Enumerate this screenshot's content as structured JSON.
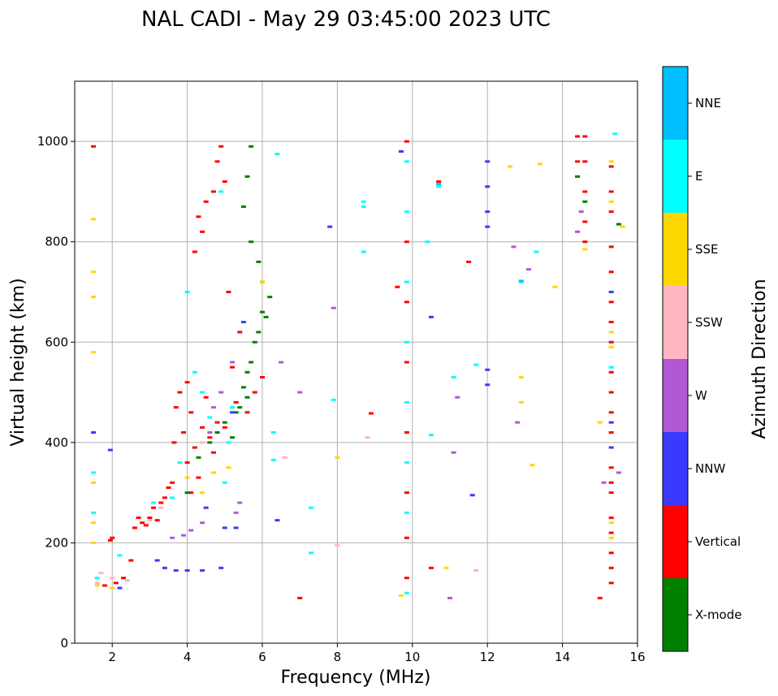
{
  "chart_data": {
    "type": "scatter",
    "title": "NAL CADI - May 29 03:45:00 2023 UTC",
    "xlabel": "Frequency (MHz)",
    "ylabel": "Virtual height (km)",
    "xlim": [
      1,
      16
    ],
    "ylim": [
      0,
      1120
    ],
    "xticks": [
      2,
      4,
      6,
      8,
      10,
      12,
      14,
      16
    ],
    "yticks": [
      0,
      200,
      400,
      600,
      800,
      1000
    ],
    "grid": true,
    "colorbar": {
      "label": "Azimuth Direction",
      "categories": [
        {
          "name": "X-mode",
          "color": "#008000"
        },
        {
          "name": "Vertical",
          "color": "#ff0000"
        },
        {
          "name": "NNW",
          "color": "#3a3aff"
        },
        {
          "name": "W",
          "color": "#b158d6"
        },
        {
          "name": "SSW",
          "color": "#ffb6c1"
        },
        {
          "name": "SSE",
          "color": "#ffd700"
        },
        {
          "name": "E",
          "color": "#00ffff"
        },
        {
          "name": "NNE",
          "color": "#00bfff"
        }
      ]
    },
    "series": [
      {
        "name": "Vertical",
        "points": [
          [
            1.5,
            990
          ],
          [
            1.8,
            115
          ],
          [
            1.95,
            205
          ],
          [
            2.0,
            210
          ],
          [
            2.1,
            120
          ],
          [
            2.3,
            130
          ],
          [
            2.5,
            165
          ],
          [
            2.6,
            230
          ],
          [
            2.7,
            250
          ],
          [
            2.8,
            240
          ],
          [
            2.9,
            235
          ],
          [
            3.0,
            250
          ],
          [
            3.1,
            270
          ],
          [
            3.2,
            245
          ],
          [
            3.3,
            280
          ],
          [
            3.4,
            290
          ],
          [
            3.5,
            310
          ],
          [
            3.6,
            320
          ],
          [
            3.65,
            400
          ],
          [
            3.7,
            470
          ],
          [
            3.8,
            500
          ],
          [
            3.9,
            420
          ],
          [
            4.0,
            360
          ],
          [
            4.0,
            520
          ],
          [
            4.1,
            300
          ],
          [
            4.1,
            460
          ],
          [
            4.2,
            390
          ],
          [
            4.2,
            780
          ],
          [
            4.3,
            330
          ],
          [
            4.3,
            850
          ],
          [
            4.4,
            430
          ],
          [
            4.4,
            820
          ],
          [
            4.5,
            490
          ],
          [
            4.5,
            880
          ],
          [
            4.6,
            410
          ],
          [
            4.7,
            380
          ],
          [
            4.7,
            900
          ],
          [
            4.8,
            440
          ],
          [
            4.8,
            960
          ],
          [
            4.9,
            990
          ],
          [
            5.0,
            430
          ],
          [
            5.0,
            920
          ],
          [
            5.1,
            700
          ],
          [
            5.2,
            550
          ],
          [
            5.3,
            480
          ],
          [
            5.4,
            620
          ],
          [
            5.6,
            460
          ],
          [
            5.8,
            500
          ],
          [
            6.0,
            530
          ],
          [
            7.0,
            90
          ],
          [
            8.9,
            458
          ],
          [
            9.6,
            710
          ],
          [
            9.85,
            130
          ],
          [
            9.85,
            210
          ],
          [
            9.85,
            300
          ],
          [
            9.85,
            420
          ],
          [
            9.85,
            560
          ],
          [
            9.85,
            680
          ],
          [
            9.85,
            800
          ],
          [
            9.85,
            1000
          ],
          [
            10.5,
            150
          ],
          [
            10.7,
            920
          ],
          [
            11.5,
            760
          ],
          [
            14.4,
            1010
          ],
          [
            14.4,
            960
          ],
          [
            14.6,
            1010
          ],
          [
            14.6,
            960
          ],
          [
            14.6,
            900
          ],
          [
            14.6,
            840
          ],
          [
            14.6,
            800
          ],
          [
            15.0,
            90
          ],
          [
            15.3,
            120
          ],
          [
            15.3,
            150
          ],
          [
            15.3,
            180
          ],
          [
            15.3,
            220
          ],
          [
            15.3,
            250
          ],
          [
            15.3,
            300
          ],
          [
            15.3,
            320
          ],
          [
            15.3,
            350
          ],
          [
            15.3,
            420
          ],
          [
            15.3,
            460
          ],
          [
            15.3,
            500
          ],
          [
            15.3,
            540
          ],
          [
            15.3,
            600
          ],
          [
            15.3,
            640
          ],
          [
            15.3,
            680
          ],
          [
            15.3,
            740
          ],
          [
            15.3,
            790
          ],
          [
            15.3,
            860
          ],
          [
            15.3,
            900
          ],
          [
            15.3,
            950
          ]
        ]
      },
      {
        "name": "X-mode",
        "points": [
          [
            4.0,
            300
          ],
          [
            4.3,
            370
          ],
          [
            4.6,
            400
          ],
          [
            4.8,
            420
          ],
          [
            5.0,
            440
          ],
          [
            5.2,
            410
          ],
          [
            5.3,
            460
          ],
          [
            5.4,
            470
          ],
          [
            5.5,
            510
          ],
          [
            5.6,
            490
          ],
          [
            5.6,
            540
          ],
          [
            5.7,
            560
          ],
          [
            5.8,
            600
          ],
          [
            5.9,
            620
          ],
          [
            6.0,
            660
          ],
          [
            6.1,
            650
          ],
          [
            6.2,
            690
          ],
          [
            5.9,
            760
          ],
          [
            6.0,
            720
          ],
          [
            5.7,
            800
          ],
          [
            5.5,
            870
          ],
          [
            5.6,
            930
          ],
          [
            5.7,
            990
          ],
          [
            14.4,
            930
          ],
          [
            14.6,
            880
          ],
          [
            15.5,
            835
          ]
        ]
      },
      {
        "name": "NNW",
        "points": [
          [
            1.5,
            420
          ],
          [
            1.95,
            385
          ],
          [
            2.2,
            110
          ],
          [
            3.2,
            165
          ],
          [
            3.4,
            150
          ],
          [
            3.7,
            145
          ],
          [
            4.0,
            145
          ],
          [
            4.4,
            145
          ],
          [
            4.9,
            150
          ],
          [
            4.5,
            270
          ],
          [
            5.0,
            230
          ],
          [
            5.3,
            230
          ],
          [
            5.5,
            640
          ],
          [
            5.2,
            460
          ],
          [
            6.4,
            245
          ],
          [
            7.8,
            830
          ],
          [
            9.7,
            980
          ],
          [
            10.5,
            650
          ],
          [
            11.6,
            295
          ],
          [
            12.0,
            515
          ],
          [
            12.0,
            545
          ],
          [
            12.0,
            830
          ],
          [
            12.0,
            860
          ],
          [
            12.0,
            910
          ],
          [
            12.0,
            960
          ],
          [
            15.3,
            440
          ],
          [
            15.3,
            390
          ],
          [
            15.3,
            700
          ]
        ]
      },
      {
        "name": "W",
        "points": [
          [
            3.6,
            210
          ],
          [
            3.9,
            215
          ],
          [
            4.1,
            225
          ],
          [
            4.4,
            240
          ],
          [
            5.3,
            260
          ],
          [
            5.4,
            280
          ],
          [
            5.2,
            560
          ],
          [
            4.9,
            500
          ],
          [
            4.7,
            470
          ],
          [
            4.6,
            420
          ],
          [
            6.5,
            560
          ],
          [
            7.0,
            500
          ],
          [
            7.9,
            668
          ],
          [
            11.0,
            90
          ],
          [
            11.1,
            380
          ],
          [
            11.2,
            490
          ],
          [
            12.7,
            790
          ],
          [
            12.8,
            440
          ],
          [
            13.1,
            745
          ],
          [
            14.4,
            820
          ],
          [
            14.5,
            860
          ],
          [
            15.5,
            340
          ],
          [
            15.1,
            320
          ]
        ]
      },
      {
        "name": "SSW",
        "points": [
          [
            1.6,
            120
          ],
          [
            1.7,
            140
          ],
          [
            2.0,
            130
          ],
          [
            2.4,
            125
          ],
          [
            3.0,
            245
          ],
          [
            3.3,
            270
          ],
          [
            4.4,
            400
          ],
          [
            6.6,
            370
          ],
          [
            8.0,
            195
          ],
          [
            8.8,
            410
          ],
          [
            11.7,
            145
          ]
        ]
      },
      {
        "name": "SSE",
        "points": [
          [
            1.5,
            845
          ],
          [
            1.5,
            740
          ],
          [
            1.5,
            690
          ],
          [
            1.5,
            580
          ],
          [
            1.5,
            320
          ],
          [
            1.5,
            240
          ],
          [
            1.5,
            200
          ],
          [
            1.6,
            115
          ],
          [
            2.0,
            110
          ],
          [
            4.0,
            330
          ],
          [
            4.4,
            300
          ],
          [
            4.7,
            340
          ],
          [
            5.1,
            350
          ],
          [
            6.0,
            720
          ],
          [
            8.0,
            370
          ],
          [
            9.7,
            95
          ],
          [
            10.9,
            150
          ],
          [
            12.6,
            950
          ],
          [
            12.9,
            530
          ],
          [
            12.9,
            480
          ],
          [
            13.2,
            355
          ],
          [
            13.4,
            955
          ],
          [
            13.8,
            710
          ],
          [
            14.6,
            785
          ],
          [
            15.0,
            440
          ],
          [
            15.3,
            620
          ],
          [
            15.3,
            590
          ],
          [
            15.3,
            880
          ],
          [
            15.3,
            960
          ],
          [
            15.3,
            240
          ],
          [
            15.3,
            210
          ],
          [
            15.6,
            830
          ]
        ]
      },
      {
        "name": "E",
        "points": [
          [
            1.5,
            340
          ],
          [
            1.5,
            260
          ],
          [
            1.6,
            130
          ],
          [
            2.2,
            175
          ],
          [
            3.1,
            280
          ],
          [
            3.6,
            290
          ],
          [
            3.8,
            360
          ],
          [
            4.0,
            700
          ],
          [
            4.2,
            540
          ],
          [
            4.4,
            500
          ],
          [
            4.6,
            450
          ],
          [
            4.9,
            900
          ],
          [
            5.0,
            320
          ],
          [
            5.1,
            400
          ],
          [
            5.2,
            470
          ],
          [
            6.3,
            420
          ],
          [
            6.3,
            365
          ],
          [
            6.4,
            975
          ],
          [
            7.3,
            270
          ],
          [
            7.3,
            180
          ],
          [
            7.9,
            485
          ],
          [
            8.7,
            780
          ],
          [
            8.7,
            880
          ],
          [
            8.7,
            870
          ],
          [
            9.85,
            100
          ],
          [
            9.85,
            260
          ],
          [
            9.85,
            360
          ],
          [
            9.85,
            480
          ],
          [
            9.85,
            600
          ],
          [
            9.85,
            720
          ],
          [
            9.85,
            860
          ],
          [
            9.85,
            960
          ],
          [
            10.4,
            800
          ],
          [
            10.5,
            415
          ],
          [
            10.7,
            910
          ],
          [
            11.1,
            530
          ],
          [
            11.7,
            555
          ],
          [
            12.9,
            720
          ],
          [
            13.3,
            780
          ],
          [
            15.3,
            550
          ],
          [
            15.4,
            1015
          ]
        ]
      },
      {
        "name": "NNE",
        "points": [
          [
            10.7,
            915
          ],
          [
            12.9,
            722
          ]
        ]
      }
    ]
  }
}
